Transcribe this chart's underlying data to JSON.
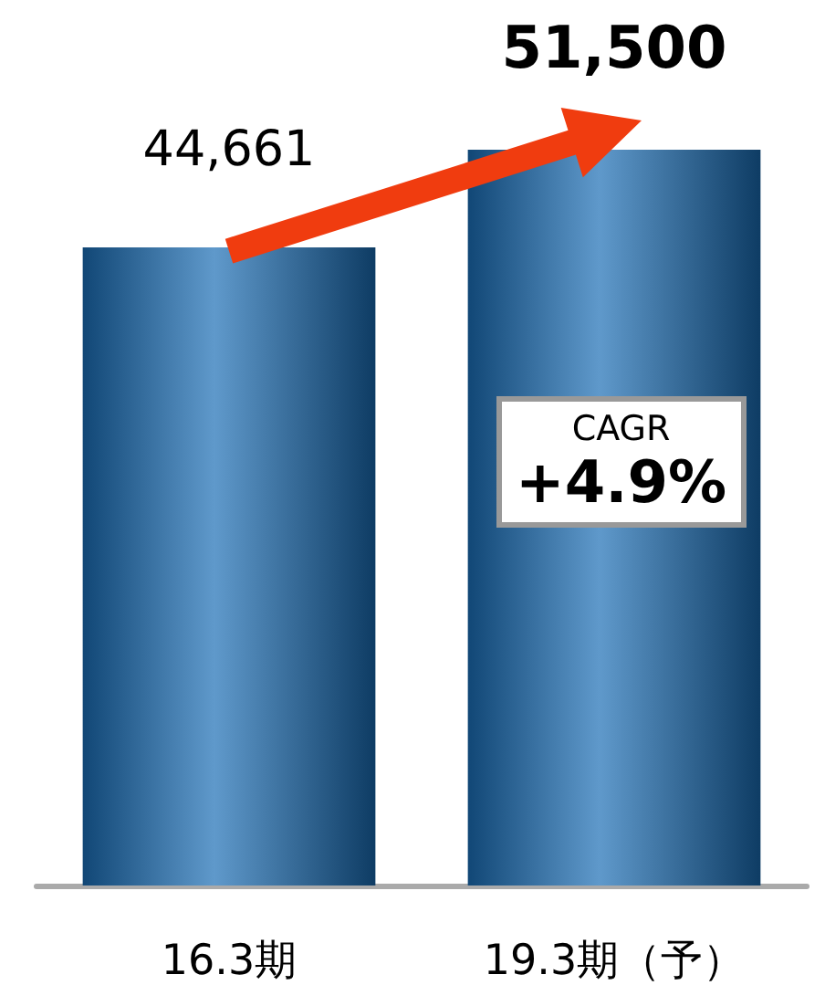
{
  "chart_data": {
    "type": "bar",
    "categories": [
      "16.3期",
      "19.3期（予）"
    ],
    "values": [
      44661,
      51500
    ],
    "colors": [
      "#1a6db5",
      "#1a6db5"
    ],
    "value_labels": [
      "44,661",
      "51,500"
    ],
    "annotations": [
      "CAGR +4.9%"
    ]
  }
}
